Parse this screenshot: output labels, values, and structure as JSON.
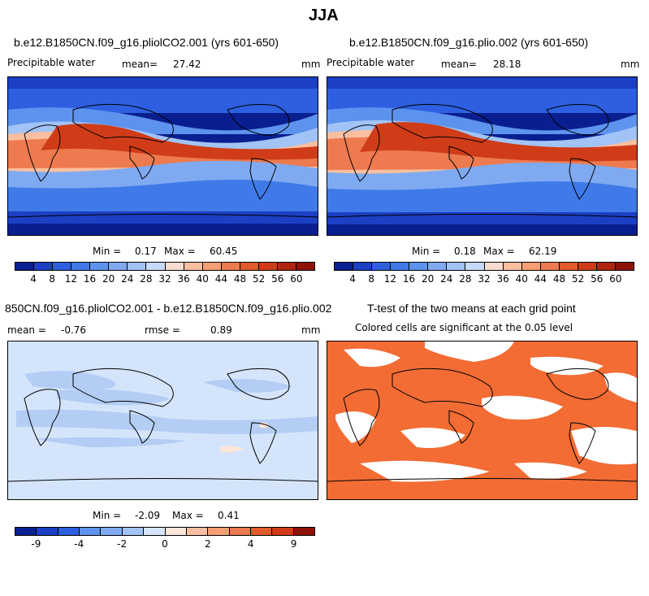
{
  "figure": {
    "title": "JJA"
  },
  "panels": [
    {
      "title": "b.e12.B1850CN.f09_g16.pliolCO2.001 (yrs 601-650)",
      "variable": "Precipitable water",
      "mean_label": "mean=",
      "mean_value": "27.42",
      "units": "mm",
      "min_label": "Min =",
      "min_value": "0.17",
      "max_label": "Max =",
      "max_value": "60.45"
    },
    {
      "title": "b.e12.B1850CN.f09_g16.plio.002 (yrs 601-650)",
      "variable": "Precipitable water",
      "mean_label": "mean=",
      "mean_value": "28.18",
      "units": "mm",
      "min_label": "Min =",
      "min_value": "0.18",
      "max_label": "Max =",
      "max_value": "62.19"
    },
    {
      "title": "850CN.f09_g16.pliolCO2.001 - b.e12.B1850CN.f09_g16.plio.002",
      "mean_label": "mean =",
      "mean_value": "-0.76",
      "rmse_label": "rmse =",
      "rmse_value": "0.89",
      "units": "mm",
      "min_label": "Min =",
      "min_value": "-2.09",
      "max_label": "Max =",
      "max_value": "0.41"
    },
    {
      "title": "T-test of the two means at each grid point",
      "subtitle": "Colored cells are significant at the 0.05 level"
    }
  ],
  "colorbar_abs": {
    "ticks": [
      "4",
      "8",
      "12",
      "16",
      "20",
      "24",
      "28",
      "32",
      "36",
      "40",
      "44",
      "48",
      "52",
      "56",
      "60"
    ],
    "colors": [
      "#0a1f8f",
      "#1c3fc4",
      "#2e5fe0",
      "#3f7ae8",
      "#5d93ee",
      "#7faaf1",
      "#a2c3f6",
      "#c7daf9",
      "#f6dcd0",
      "#f9bfa0",
      "#f69e74",
      "#ee7a4f",
      "#e35a2c",
      "#cf3c17",
      "#b02510",
      "#8f1208"
    ]
  },
  "colorbar_diff": {
    "ticks": [
      "-9",
      "-4",
      "-2",
      "0",
      "2",
      "4",
      "9"
    ],
    "colors": [
      "#0a1f8f",
      "#1c3fc4",
      "#2e5fe0",
      "#5d93ee",
      "#7faaf1",
      "#a2c3f6",
      "#d4e5fb",
      "#fbe6d8",
      "#f9bfa0",
      "#f69e74",
      "#ee7a4f",
      "#e35a2c",
      "#cf3c17",
      "#8f1208"
    ]
  },
  "colors": {
    "ttest_fill": "#f26c34",
    "diff_background": "#d4e5fb",
    "diff_light_blue": "#b4cdf5"
  }
}
